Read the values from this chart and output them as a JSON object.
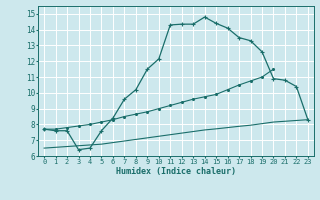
{
  "xlabel": "Humidex (Indice chaleur)",
  "bg_color": "#cde8ed",
  "grid_color": "#ffffff",
  "line_color": "#1a6e6a",
  "xlim": [
    -0.5,
    23.5
  ],
  "ylim": [
    6,
    15.5
  ],
  "xticks": [
    0,
    1,
    2,
    3,
    4,
    5,
    6,
    7,
    8,
    9,
    10,
    11,
    12,
    13,
    14,
    15,
    16,
    17,
    18,
    19,
    20,
    21,
    22,
    23
  ],
  "yticks": [
    6,
    7,
    8,
    9,
    10,
    11,
    12,
    13,
    14,
    15
  ],
  "line1_x": [
    0,
    1,
    2,
    3,
    4,
    5,
    6,
    7,
    8,
    9,
    10,
    11,
    12,
    13,
    14,
    15,
    16,
    17,
    18,
    19,
    20,
    21,
    22,
    23
  ],
  "line1_y": [
    7.7,
    7.6,
    7.6,
    6.4,
    6.5,
    7.6,
    8.4,
    9.6,
    10.2,
    11.5,
    12.15,
    14.3,
    14.35,
    14.35,
    14.8,
    14.4,
    14.1,
    13.5,
    13.3,
    12.6,
    10.9,
    10.8,
    10.4,
    8.3
  ],
  "line2_x": [
    0,
    1,
    2,
    3,
    4,
    5,
    6,
    7,
    8,
    9,
    10,
    11,
    12,
    13,
    14,
    15,
    16,
    17,
    18,
    19,
    20
  ],
  "line2_y": [
    7.7,
    7.7,
    7.8,
    7.9,
    8.0,
    8.15,
    8.3,
    8.5,
    8.65,
    8.8,
    9.0,
    9.2,
    9.4,
    9.6,
    9.75,
    9.9,
    10.2,
    10.5,
    10.75,
    11.0,
    11.5
  ],
  "line3_x": [
    0,
    1,
    2,
    3,
    4,
    5,
    6,
    7,
    8,
    9,
    10,
    11,
    12,
    13,
    14,
    15,
    16,
    17,
    18,
    19,
    20,
    21,
    22,
    23
  ],
  "line3_y": [
    6.5,
    6.55,
    6.6,
    6.65,
    6.7,
    6.75,
    6.85,
    6.95,
    7.05,
    7.15,
    7.25,
    7.35,
    7.45,
    7.55,
    7.65,
    7.72,
    7.8,
    7.88,
    7.95,
    8.05,
    8.15,
    8.2,
    8.25,
    8.3
  ]
}
